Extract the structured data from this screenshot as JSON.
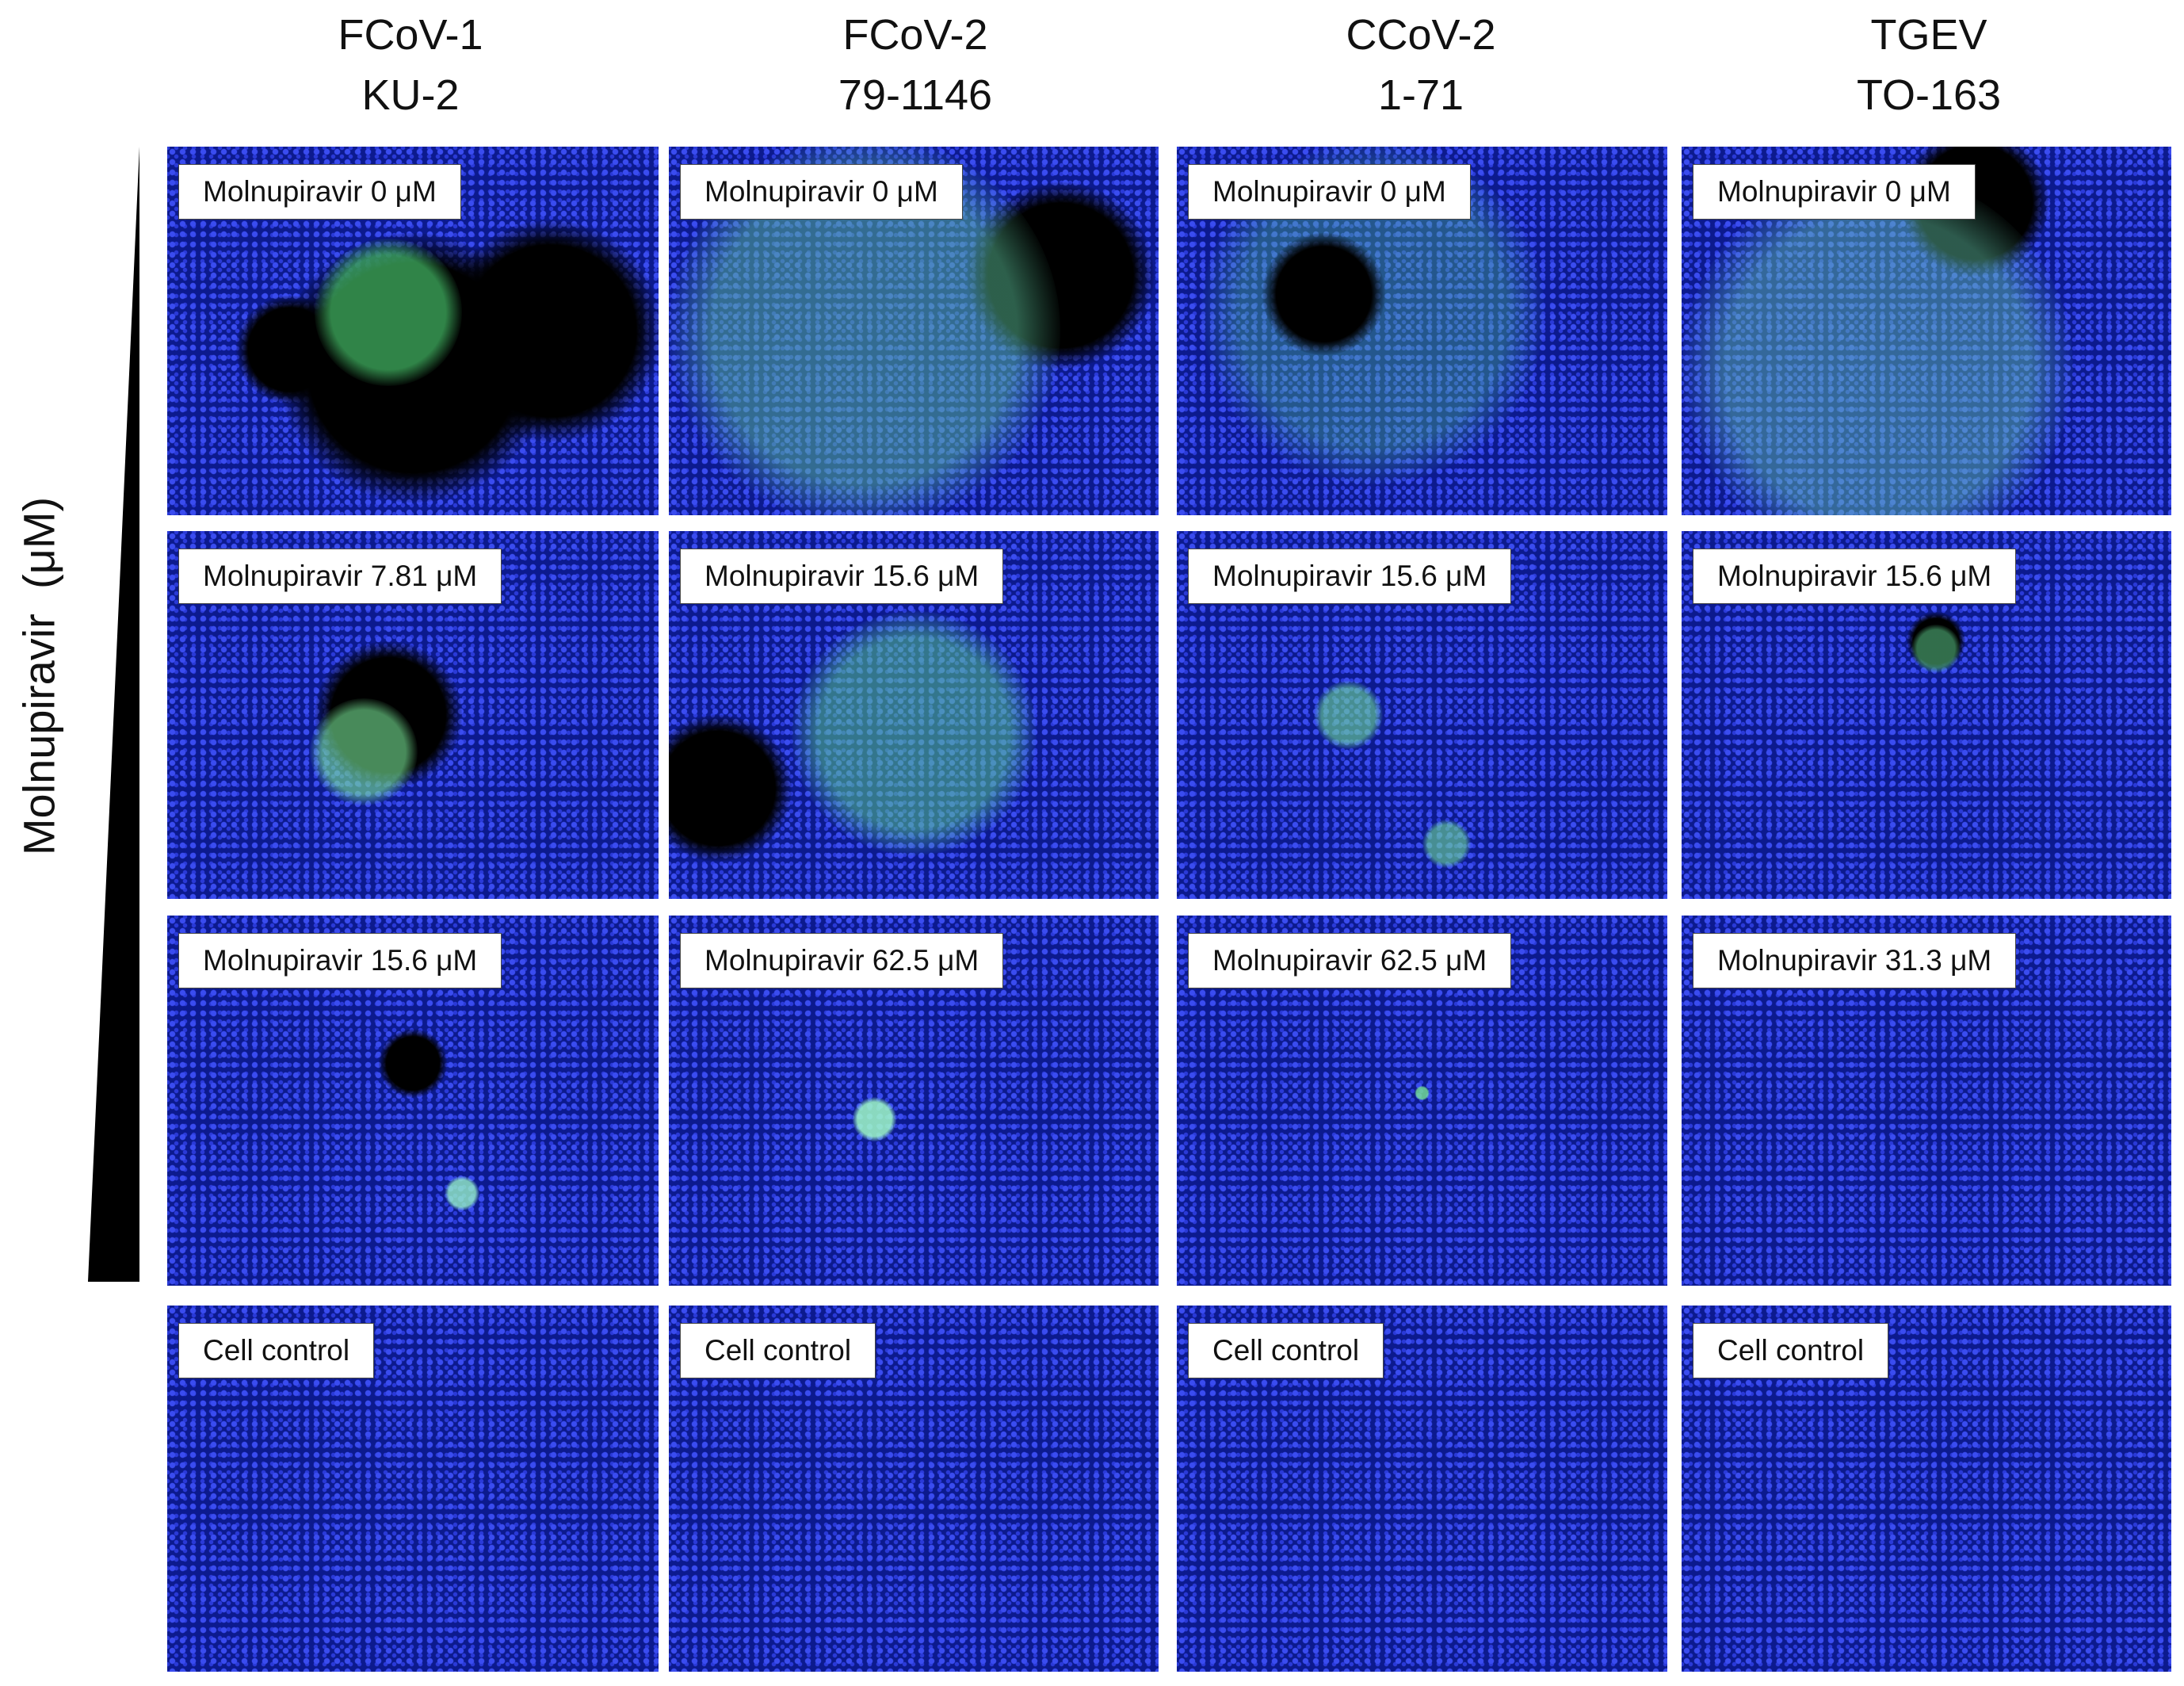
{
  "columns": [
    {
      "line1": "FCoV-1",
      "line2": "KU-2"
    },
    {
      "line1": "FCoV-2",
      "line2": "79-1146"
    },
    {
      "line1": "CCoV-2",
      "line2": "1-71"
    },
    {
      "line1": "TGEV",
      "line2": "TO-163"
    }
  ],
  "axis_label": "Molnupiravir  (μM)",
  "panels": [
    [
      "Molnupiravir 0 μM",
      "Molnupiravir 0 μM",
      "Molnupiravir 0 μM",
      "Molnupiravir 0 μM"
    ],
    [
      "Molnupiravir 7.81 μM",
      "Molnupiravir 15.6 μM",
      "Molnupiravir 15.6 μM",
      "Molnupiravir 15.6 μM"
    ],
    [
      "Molnupiravir 15.6 μM",
      "Molnupiravir 62.5 μM",
      "Molnupiravir 62.5 μM",
      "Molnupiravir 31.3 μM"
    ],
    [
      "Cell control",
      "Cell control",
      "Cell control",
      "Cell control"
    ]
  ]
}
